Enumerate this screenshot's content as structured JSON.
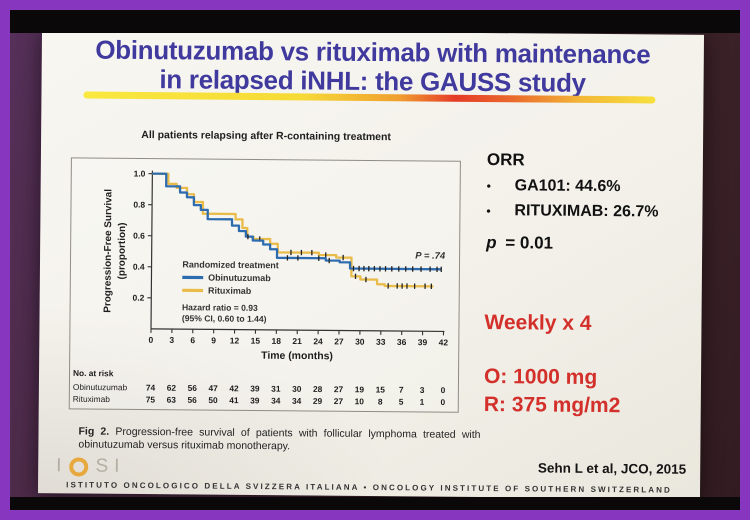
{
  "slide": {
    "title_line1": "Obinutuzumab vs rituximab with maintenance",
    "title_line2": "in relapsed iNHL: the GAUSS study",
    "figure": {
      "header": "All patients relapsing after R-containing treatment",
      "caption_label": "Fig 2.",
      "caption_text": "Progression-free survival of patients with follicular lymphoma treated with obinutuzumab versus rituximab monotherapy."
    },
    "results": {
      "orr_label": "ORR",
      "bullet_glyph": "•",
      "bullets": [
        "GA101: 44.6%",
        "RITUXIMAB: 26.7%"
      ],
      "p_label": "p",
      "p_value": "= 0.01",
      "schedule": "Weekly x 4",
      "dose_o": "O: 1000 mg",
      "dose_r": "R: 375 mg/m2"
    },
    "footer": {
      "logo": {
        "i1": "I",
        "s": "S",
        "i2": "I"
      },
      "citation": "Sehn L et al, JCO, 2015",
      "institute": "ISTITUTO ONCOLOGICO DELLA SVIZZERA ITALIANA • ONCOLOGY INSTITUTE OF SOUTHERN SWITZERLAND"
    },
    "colors": {
      "title_blue": "#403a9e",
      "accent_red": "#d3302c",
      "frame_purple": "#8736c0",
      "km_blue": "#2e6cb0",
      "km_yellow": "#e9bc4a"
    }
  },
  "chart_data": {
    "type": "line",
    "subtype": "kaplan-meier-step",
    "title": "All patients relapsing after R-containing treatment",
    "xlabel": "Time (months)",
    "ylabel_line1": "Progression-Free Survival",
    "ylabel_line2": "(proportion)",
    "xlim": [
      0,
      42
    ],
    "ylim": [
      0,
      1.0
    ],
    "xticks": [
      0,
      3,
      6,
      9,
      12,
      15,
      18,
      21,
      24,
      27,
      30,
      33,
      36,
      39,
      42
    ],
    "yticks": [
      1.0,
      0.8,
      0.6,
      0.4,
      0.2
    ],
    "grid": false,
    "annotation": "P = .74",
    "legend_title": "Randomized treatment",
    "legend_position": "lower-left-inside",
    "hazard_line1": "Hazard ratio = 0.93",
    "hazard_line2": "(95% CI, 0.60 to 1.44)",
    "series": [
      {
        "name": "Rituximab",
        "color": "#e9bc4a",
        "steps": [
          [
            0,
            1.0
          ],
          [
            2.3,
            1.0
          ],
          [
            2.3,
            0.935
          ],
          [
            3.5,
            0.935
          ],
          [
            3.5,
            0.91
          ],
          [
            5,
            0.91
          ],
          [
            5,
            0.87
          ],
          [
            6,
            0.87
          ],
          [
            6,
            0.82
          ],
          [
            7.3,
            0.82
          ],
          [
            7.3,
            0.745
          ],
          [
            12,
            0.745
          ],
          [
            12,
            0.71
          ],
          [
            13,
            0.71
          ],
          [
            13,
            0.655
          ],
          [
            13.7,
            0.655
          ],
          [
            13.7,
            0.6
          ],
          [
            14.6,
            0.6
          ],
          [
            14.6,
            0.585
          ],
          [
            17,
            0.585
          ],
          [
            17,
            0.555
          ],
          [
            18.1,
            0.555
          ],
          [
            18.1,
            0.5
          ],
          [
            24,
            0.5
          ],
          [
            24,
            0.485
          ],
          [
            26.5,
            0.485
          ],
          [
            26.5,
            0.47
          ],
          [
            28.7,
            0.47
          ],
          [
            28.7,
            0.35
          ],
          [
            30,
            0.35
          ],
          [
            30,
            0.33
          ],
          [
            32.4,
            0.33
          ],
          [
            32.4,
            0.3
          ],
          [
            33.5,
            0.3
          ],
          [
            33.5,
            0.29
          ],
          [
            40.5,
            0.29
          ]
        ],
        "censors": [
          [
            15.5,
            0.585
          ],
          [
            20,
            0.5
          ],
          [
            21.5,
            0.5
          ],
          [
            23,
            0.5
          ],
          [
            25,
            0.485
          ],
          [
            27.5,
            0.47
          ],
          [
            29.3,
            0.35
          ],
          [
            30.8,
            0.33
          ],
          [
            34,
            0.29
          ],
          [
            35.3,
            0.29
          ],
          [
            36,
            0.29
          ],
          [
            36.7,
            0.29
          ],
          [
            37.8,
            0.29
          ],
          [
            39.3,
            0.29
          ],
          [
            40.2,
            0.29
          ]
        ]
      },
      {
        "name": "Obinutuzumab",
        "color": "#2e6cb0",
        "steps": [
          [
            0,
            1.0
          ],
          [
            2,
            1.0
          ],
          [
            2,
            0.92
          ],
          [
            4,
            0.92
          ],
          [
            4,
            0.88
          ],
          [
            5,
            0.88
          ],
          [
            5,
            0.85
          ],
          [
            6,
            0.85
          ],
          [
            6,
            0.8
          ],
          [
            7,
            0.8
          ],
          [
            7,
            0.77
          ],
          [
            8,
            0.77
          ],
          [
            8,
            0.71
          ],
          [
            11.5,
            0.71
          ],
          [
            11.5,
            0.67
          ],
          [
            12.5,
            0.67
          ],
          [
            12.5,
            0.635
          ],
          [
            13.5,
            0.635
          ],
          [
            13.5,
            0.6
          ],
          [
            14.5,
            0.6
          ],
          [
            14.5,
            0.575
          ],
          [
            16,
            0.575
          ],
          [
            16,
            0.55
          ],
          [
            17,
            0.55
          ],
          [
            17,
            0.52
          ],
          [
            18,
            0.52
          ],
          [
            18,
            0.465
          ],
          [
            25,
            0.465
          ],
          [
            25,
            0.45
          ],
          [
            27,
            0.45
          ],
          [
            27,
            0.44
          ],
          [
            28.5,
            0.44
          ],
          [
            28.5,
            0.4
          ],
          [
            41.6,
            0.4
          ]
        ],
        "censors": [
          [
            13.8,
            0.6
          ],
          [
            19.5,
            0.465
          ],
          [
            21,
            0.465
          ],
          [
            24,
            0.465
          ],
          [
            25.5,
            0.45
          ],
          [
            29,
            0.4
          ],
          [
            29.8,
            0.4
          ],
          [
            30.5,
            0.4
          ],
          [
            31.2,
            0.4
          ],
          [
            32,
            0.4
          ],
          [
            32.8,
            0.4
          ],
          [
            33.6,
            0.4
          ],
          [
            34.5,
            0.4
          ],
          [
            35.5,
            0.4
          ],
          [
            36.5,
            0.4
          ],
          [
            37.5,
            0.4
          ],
          [
            38.7,
            0.4
          ],
          [
            40,
            0.4
          ],
          [
            41,
            0.4
          ],
          [
            41.6,
            0.4
          ]
        ]
      }
    ],
    "risk_table": {
      "header": "No. at risk",
      "rows": [
        {
          "label": "Obinutuzumab",
          "values": [
            74,
            62,
            56,
            47,
            42,
            39,
            31,
            30,
            28,
            27,
            19,
            15,
            7,
            3,
            0
          ]
        },
        {
          "label": "Rituximab",
          "values": [
            75,
            63,
            56,
            50,
            41,
            39,
            34,
            34,
            29,
            27,
            10,
            8,
            5,
            1,
            0
          ]
        }
      ]
    }
  }
}
